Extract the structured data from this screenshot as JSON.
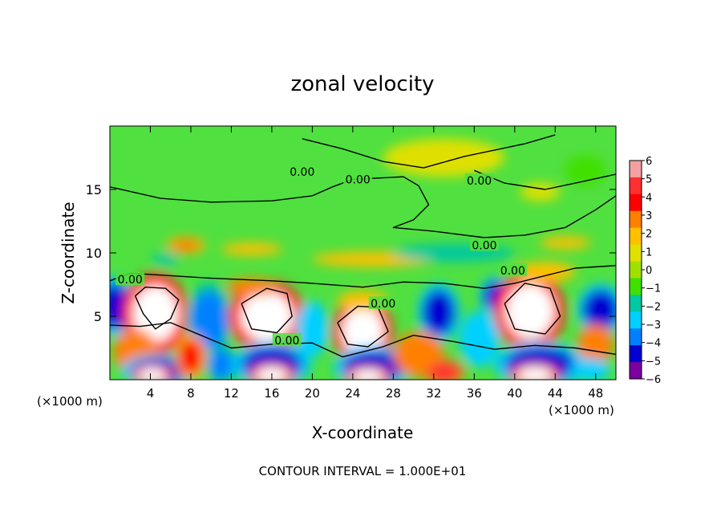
{
  "chart_data": {
    "type": "heatmap",
    "title": "zonal velocity",
    "xlabel": "X-coordinate",
    "ylabel": "Z-coordinate",
    "x_unit_label": "(×1000 m)",
    "z_unit_label": "(×1000 m)",
    "xlim": [
      0,
      50
    ],
    "ylim": [
      0,
      20
    ],
    "x_ticks": [
      4,
      8,
      12,
      16,
      20,
      24,
      28,
      32,
      36,
      40,
      44,
      48
    ],
    "y_ticks": [
      5,
      10,
      15
    ],
    "colorbar": {
      "ticks": [
        6,
        5,
        4,
        3,
        2,
        1,
        0,
        -1,
        -2,
        -3,
        -4,
        -5,
        -6
      ],
      "range": [
        -6,
        6
      ],
      "colors": [
        "#f4a0a0",
        "#ff3030",
        "#ff0000",
        "#ff8000",
        "#ffc000",
        "#e0e000",
        "#a0e000",
        "#40e000",
        "#00c8a0",
        "#00d0ff",
        "#0080ff",
        "#0000d0",
        "#7a00a0"
      ]
    },
    "contour_interval_text": "CONTOUR INTERVAL = 1.000E+01",
    "contour_labels": [
      {
        "text": "0.00",
        "x": 19.0,
        "z": 16.4
      },
      {
        "text": "0.00",
        "x": 24.5,
        "z": 15.8
      },
      {
        "text": "0.00",
        "x": 36.5,
        "z": 15.7
      },
      {
        "text": "0.00",
        "x": 37.0,
        "z": 10.6
      },
      {
        "text": "0.00",
        "x": 39.8,
        "z": 8.6
      },
      {
        "text": "0.00",
        "x": 2.0,
        "z": 7.9
      },
      {
        "text": "0.00",
        "x": 27.0,
        "z": 6.0
      },
      {
        "text": "0.00",
        "x": 17.5,
        "z": 3.1
      }
    ],
    "blobs": [
      {
        "x": 0.5,
        "z": 5.8,
        "rx": 1.6,
        "rz": 1.8,
        "v": -4.5
      },
      {
        "x": 4.5,
        "z": 5.2,
        "rx": 2.6,
        "rz": 2.6,
        "v": 6.0
      },
      {
        "x": 2.5,
        "z": 2.2,
        "rx": 2.2,
        "rz": 1.8,
        "v": 3.0
      },
      {
        "x": 5.0,
        "z": 0.7,
        "rx": 3.0,
        "rz": 1.0,
        "v": -4.5
      },
      {
        "x": 4.2,
        "z": 0.4,
        "rx": 1.6,
        "rz": 0.6,
        "v": 6.0
      },
      {
        "x": 9.8,
        "z": 4.7,
        "rx": 1.8,
        "rz": 2.3,
        "v": -4.0
      },
      {
        "x": 8.0,
        "z": 1.8,
        "rx": 1.2,
        "rz": 1.4,
        "v": 4.0
      },
      {
        "x": 11.0,
        "z": 1.2,
        "rx": 1.2,
        "rz": 1.2,
        "v": -3.5
      },
      {
        "x": 15.5,
        "z": 5.0,
        "rx": 3.0,
        "rz": 2.3,
        "v": 6.0
      },
      {
        "x": 14.0,
        "z": 7.3,
        "rx": 2.5,
        "rz": 0.7,
        "v": 3.0
      },
      {
        "x": 16.0,
        "z": 1.2,
        "rx": 3.0,
        "rz": 1.4,
        "v": -4.5
      },
      {
        "x": 16.0,
        "z": 0.4,
        "rx": 1.8,
        "rz": 0.7,
        "v": 6.0
      },
      {
        "x": 20.0,
        "z": 4.0,
        "rx": 1.6,
        "rz": 2.2,
        "v": -2.5
      },
      {
        "x": 25.0,
        "z": 3.8,
        "rx": 2.4,
        "rz": 2.2,
        "v": 6.0
      },
      {
        "x": 25.0,
        "z": 6.2,
        "rx": 2.5,
        "rz": 0.8,
        "v": 2.5
      },
      {
        "x": 26.0,
        "z": 1.0,
        "rx": 3.0,
        "rz": 1.3,
        "v": -4.5
      },
      {
        "x": 25.5,
        "z": 0.3,
        "rx": 1.8,
        "rz": 0.6,
        "v": 6.0
      },
      {
        "x": 32.5,
        "z": 5.3,
        "rx": 1.6,
        "rz": 1.8,
        "v": -5.0
      },
      {
        "x": 30.5,
        "z": 2.0,
        "rx": 2.5,
        "rz": 1.8,
        "v": 3.0
      },
      {
        "x": 33.0,
        "z": 0.6,
        "rx": 1.6,
        "rz": 0.8,
        "v": 5.0
      },
      {
        "x": 36.5,
        "z": 3.2,
        "rx": 2.0,
        "rz": 2.2,
        "v": -3.0
      },
      {
        "x": 38.2,
        "z": 6.6,
        "rx": 1.3,
        "rz": 1.2,
        "v": -4.5
      },
      {
        "x": 41.5,
        "z": 5.4,
        "rx": 2.8,
        "rz": 2.5,
        "v": 6.0
      },
      {
        "x": 42.5,
        "z": 1.2,
        "rx": 3.5,
        "rz": 1.4,
        "v": -4.5
      },
      {
        "x": 42.0,
        "z": 0.4,
        "rx": 2.0,
        "rz": 0.7,
        "v": 6.0
      },
      {
        "x": 48.5,
        "z": 5.5,
        "rx": 1.8,
        "rz": 1.6,
        "v": -4.5
      },
      {
        "x": 48.0,
        "z": 2.8,
        "rx": 1.8,
        "rz": 1.6,
        "v": 3.0
      },
      {
        "x": 47.5,
        "z": 0.8,
        "rx": 2.0,
        "rz": 0.9,
        "v": -3.0
      },
      {
        "x": 7.5,
        "z": 10.6,
        "rx": 1.5,
        "rz": 0.5,
        "v": 3.5
      },
      {
        "x": 14.0,
        "z": 10.3,
        "rx": 3.0,
        "rz": 0.5,
        "v": 2.0
      },
      {
        "x": 26.0,
        "z": 9.5,
        "rx": 6.0,
        "rz": 0.6,
        "v": 2.0
      },
      {
        "x": 34.0,
        "z": 10.0,
        "rx": 6.0,
        "rz": 0.7,
        "v": -1.5
      },
      {
        "x": 5.5,
        "z": 9.5,
        "rx": 1.3,
        "rz": 0.5,
        "v": -2.0
      },
      {
        "x": 45.0,
        "z": 10.8,
        "rx": 2.5,
        "rz": 0.5,
        "v": 2.5
      },
      {
        "x": 43.0,
        "z": 8.5,
        "rx": 3.0,
        "rz": 0.8,
        "v": 2.0
      },
      {
        "x": 42.5,
        "z": 14.8,
        "rx": 2.0,
        "rz": 0.7,
        "v": 1.5
      },
      {
        "x": 33.0,
        "z": 17.5,
        "rx": 6.0,
        "rz": 1.5,
        "v": 0.7
      },
      {
        "x": 47.0,
        "z": 16.5,
        "rx": 2.0,
        "rz": 1.2,
        "v": -1.2
      }
    ],
    "contour_lines": [
      [
        [
          0,
          15.2
        ],
        [
          5,
          14.3
        ],
        [
          10,
          14.0
        ],
        [
          16,
          14.1
        ],
        [
          20,
          14.5
        ],
        [
          22,
          15.2
        ],
        [
          24,
          15.8
        ],
        [
          29,
          16.0
        ],
        [
          30.5,
          15.3
        ],
        [
          31.5,
          13.8
        ],
        [
          30,
          12.6
        ],
        [
          28,
          12.0
        ],
        [
          32,
          11.7
        ],
        [
          37,
          11.2
        ],
        [
          41,
          11.4
        ],
        [
          45,
          12.0
        ],
        [
          48,
          13.4
        ],
        [
          50,
          14.5
        ]
      ],
      [
        [
          0,
          7.8
        ],
        [
          2,
          8.4
        ],
        [
          6,
          8.2
        ],
        [
          10,
          8.0
        ],
        [
          16,
          7.8
        ],
        [
          20,
          7.6
        ],
        [
          25,
          7.3
        ],
        [
          29,
          7.7
        ],
        [
          33,
          7.6
        ],
        [
          37,
          7.2
        ],
        [
          40,
          7.6
        ],
        [
          43,
          8.2
        ],
        [
          46,
          8.8
        ],
        [
          50,
          9.0
        ]
      ],
      [
        [
          0,
          4.3
        ],
        [
          3,
          4.2
        ],
        [
          6,
          4.5
        ],
        [
          9,
          3.5
        ],
        [
          12,
          2.5
        ],
        [
          16,
          2.8
        ],
        [
          20,
          2.9
        ],
        [
          23,
          1.8
        ],
        [
          27,
          2.6
        ],
        [
          30,
          3.5
        ],
        [
          34,
          3.0
        ],
        [
          38,
          2.4
        ],
        [
          42,
          2.7
        ],
        [
          46,
          2.5
        ],
        [
          50,
          2.0
        ]
      ],
      [
        [
          19,
          19.0
        ],
        [
          23,
          18.2
        ],
        [
          27,
          17.2
        ],
        [
          31,
          16.7
        ],
        [
          35,
          17.6
        ],
        [
          41,
          18.6
        ],
        [
          44,
          19.3
        ]
      ],
      [
        [
          36,
          16.5
        ],
        [
          39,
          15.5
        ],
        [
          43,
          15.0
        ],
        [
          46,
          15.5
        ],
        [
          50,
          16.2
        ]
      ],
      [
        [
          2.5,
          6.6
        ],
        [
          3.3,
          5.2
        ],
        [
          4.5,
          4.0
        ],
        [
          6.0,
          4.8
        ],
        [
          6.8,
          6.3
        ],
        [
          5.5,
          7.2
        ],
        [
          3.5,
          7.3
        ],
        [
          2.5,
          6.6
        ]
      ],
      [
        [
          13.0,
          6.0
        ],
        [
          14.0,
          4.0
        ],
        [
          16.5,
          3.7
        ],
        [
          18.0,
          5.0
        ],
        [
          17.5,
          6.8
        ],
        [
          15.5,
          7.2
        ],
        [
          13.0,
          6.0
        ]
      ],
      [
        [
          22.5,
          4.5
        ],
        [
          23.5,
          2.8
        ],
        [
          25.5,
          2.6
        ],
        [
          27.5,
          3.8
        ],
        [
          26.5,
          5.7
        ],
        [
          24.5,
          5.8
        ],
        [
          22.5,
          4.5
        ]
      ],
      [
        [
          39.0,
          6.0
        ],
        [
          40.0,
          4.0
        ],
        [
          43.0,
          3.6
        ],
        [
          44.5,
          5.0
        ],
        [
          43.5,
          7.2
        ],
        [
          41.0,
          7.6
        ],
        [
          39.0,
          6.0
        ]
      ]
    ]
  }
}
